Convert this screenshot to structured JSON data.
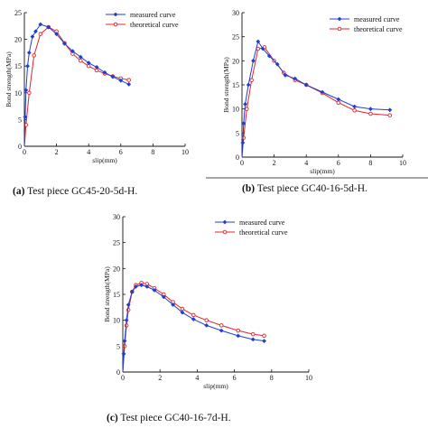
{
  "colors": {
    "measured": "#1f3fd1",
    "theoretical": "#e0242c",
    "axis": "#111111"
  },
  "legend_labels": {
    "measured": "measured curve",
    "theoretical": "theoretical curve"
  },
  "chart_data": [
    {
      "type": "line",
      "panel": "a",
      "caption_letter": "(a)",
      "caption_text": " Test piece GC45-20-5d-H.",
      "xlabel": "slip(mm)",
      "ylabel": "Bond strength(MPa)",
      "xlim": [
        0,
        10
      ],
      "ylim": [
        0,
        25
      ],
      "xticks": [
        0,
        2,
        4,
        6,
        8,
        10
      ],
      "yticks": [
        0,
        5,
        10,
        15,
        20,
        25
      ],
      "grid": false,
      "legend": "top-right",
      "series": [
        {
          "name": "measured curve",
          "key": "measured",
          "x": [
            0,
            0.05,
            0.1,
            0.2,
            0.3,
            0.5,
            0.7,
            1.0,
            1.5,
            2.0,
            2.5,
            3.0,
            3.5,
            4.0,
            4.5,
            5.0,
            5.5,
            6.0,
            6.5
          ],
          "y": [
            0,
            5.5,
            10.5,
            15.0,
            17.5,
            20.5,
            21.5,
            22.8,
            22.3,
            21.0,
            19.2,
            17.8,
            16.7,
            15.6,
            14.8,
            13.8,
            13.0,
            12.3,
            11.6
          ]
        },
        {
          "name": "theoretical curve",
          "key": "theoretical",
          "x": [
            0,
            0.1,
            0.3,
            0.6,
            1.0,
            1.5,
            2.0,
            2.5,
            3.0,
            3.5,
            4.0,
            4.5,
            5.0,
            5.5,
            6.0,
            6.5
          ],
          "y": [
            0,
            4.0,
            10.0,
            17.0,
            21.0,
            22.3,
            21.5,
            19.3,
            17.3,
            16.0,
            15.0,
            14.2,
            13.6,
            13.1,
            12.7,
            12.4
          ]
        }
      ]
    },
    {
      "type": "line",
      "panel": "b",
      "caption_letter": "(b)",
      "caption_text": " Test piece GC40-16-5d-H.",
      "xlabel": "slip(mm)",
      "ylabel": "Bond strength(MPa)",
      "xlim": [
        0,
        10
      ],
      "ylim": [
        0,
        30
      ],
      "xticks": [
        0,
        2,
        4,
        6,
        8,
        10
      ],
      "yticks": [
        0,
        5,
        10,
        15,
        20,
        25,
        30
      ],
      "grid": false,
      "legend": "top-right",
      "series": [
        {
          "name": "measured curve",
          "key": "measured",
          "x": [
            0,
            0.05,
            0.1,
            0.2,
            0.4,
            0.7,
            1.0,
            1.3,
            1.7,
            2.2,
            2.7,
            3.3,
            4.0,
            5.0,
            6.0,
            7.0,
            8.0,
            9.2
          ],
          "y": [
            0,
            3.0,
            7.0,
            11.0,
            15.0,
            20.0,
            24.0,
            22.5,
            21.0,
            19.3,
            17.0,
            16.3,
            15.0,
            13.5,
            12.0,
            10.5,
            10.0,
            9.8
          ]
        },
        {
          "name": "theoretical curve",
          "key": "theoretical",
          "x": [
            0,
            0.1,
            0.3,
            0.6,
            1.0,
            1.4,
            2.0,
            2.6,
            3.3,
            4.0,
            5.0,
            6.0,
            7.0,
            8.0,
            9.2
          ],
          "y": [
            0,
            4.0,
            10.0,
            16.0,
            22.5,
            22.8,
            20.0,
            17.5,
            16.0,
            15.0,
            13.3,
            11.3,
            9.7,
            9.0,
            8.7
          ]
        }
      ]
    },
    {
      "type": "line",
      "panel": "c",
      "caption_letter": "(c)",
      "caption_text": " Test piece GC40-16-7d-H.",
      "xlabel": "slip(mm)",
      "ylabel": "Bond strength(MPa)",
      "xlim": [
        0,
        10
      ],
      "ylim": [
        0,
        30
      ],
      "xticks": [
        0,
        2,
        4,
        6,
        8,
        10
      ],
      "yticks": [
        0,
        5,
        10,
        15,
        20,
        25,
        30
      ],
      "grid": false,
      "legend": "top-right",
      "series": [
        {
          "name": "measured curve",
          "key": "measured",
          "x": [
            0,
            0.05,
            0.1,
            0.2,
            0.3,
            0.5,
            0.7,
            1.0,
            1.3,
            1.7,
            2.2,
            2.7,
            3.2,
            3.8,
            4.5,
            5.3,
            6.2,
            7.0,
            7.6
          ],
          "y": [
            0,
            3.5,
            6.0,
            10.0,
            13.0,
            15.5,
            16.5,
            16.8,
            16.5,
            15.8,
            14.5,
            13.0,
            11.5,
            10.2,
            9.0,
            8.0,
            7.0,
            6.3,
            6.0
          ]
        },
        {
          "name": "theoretical curve",
          "key": "theoretical",
          "x": [
            0,
            0.1,
            0.2,
            0.3,
            0.5,
            0.7,
            1.0,
            1.3,
            1.7,
            2.2,
            2.7,
            3.2,
            3.8,
            4.5,
            5.3,
            6.2,
            7.0,
            7.6
          ],
          "y": [
            0,
            5.0,
            9.0,
            12.0,
            15.5,
            16.8,
            17.2,
            17.0,
            16.2,
            15.0,
            13.5,
            12.2,
            11.0,
            10.0,
            9.0,
            8.0,
            7.3,
            7.0
          ]
        }
      ]
    }
  ]
}
